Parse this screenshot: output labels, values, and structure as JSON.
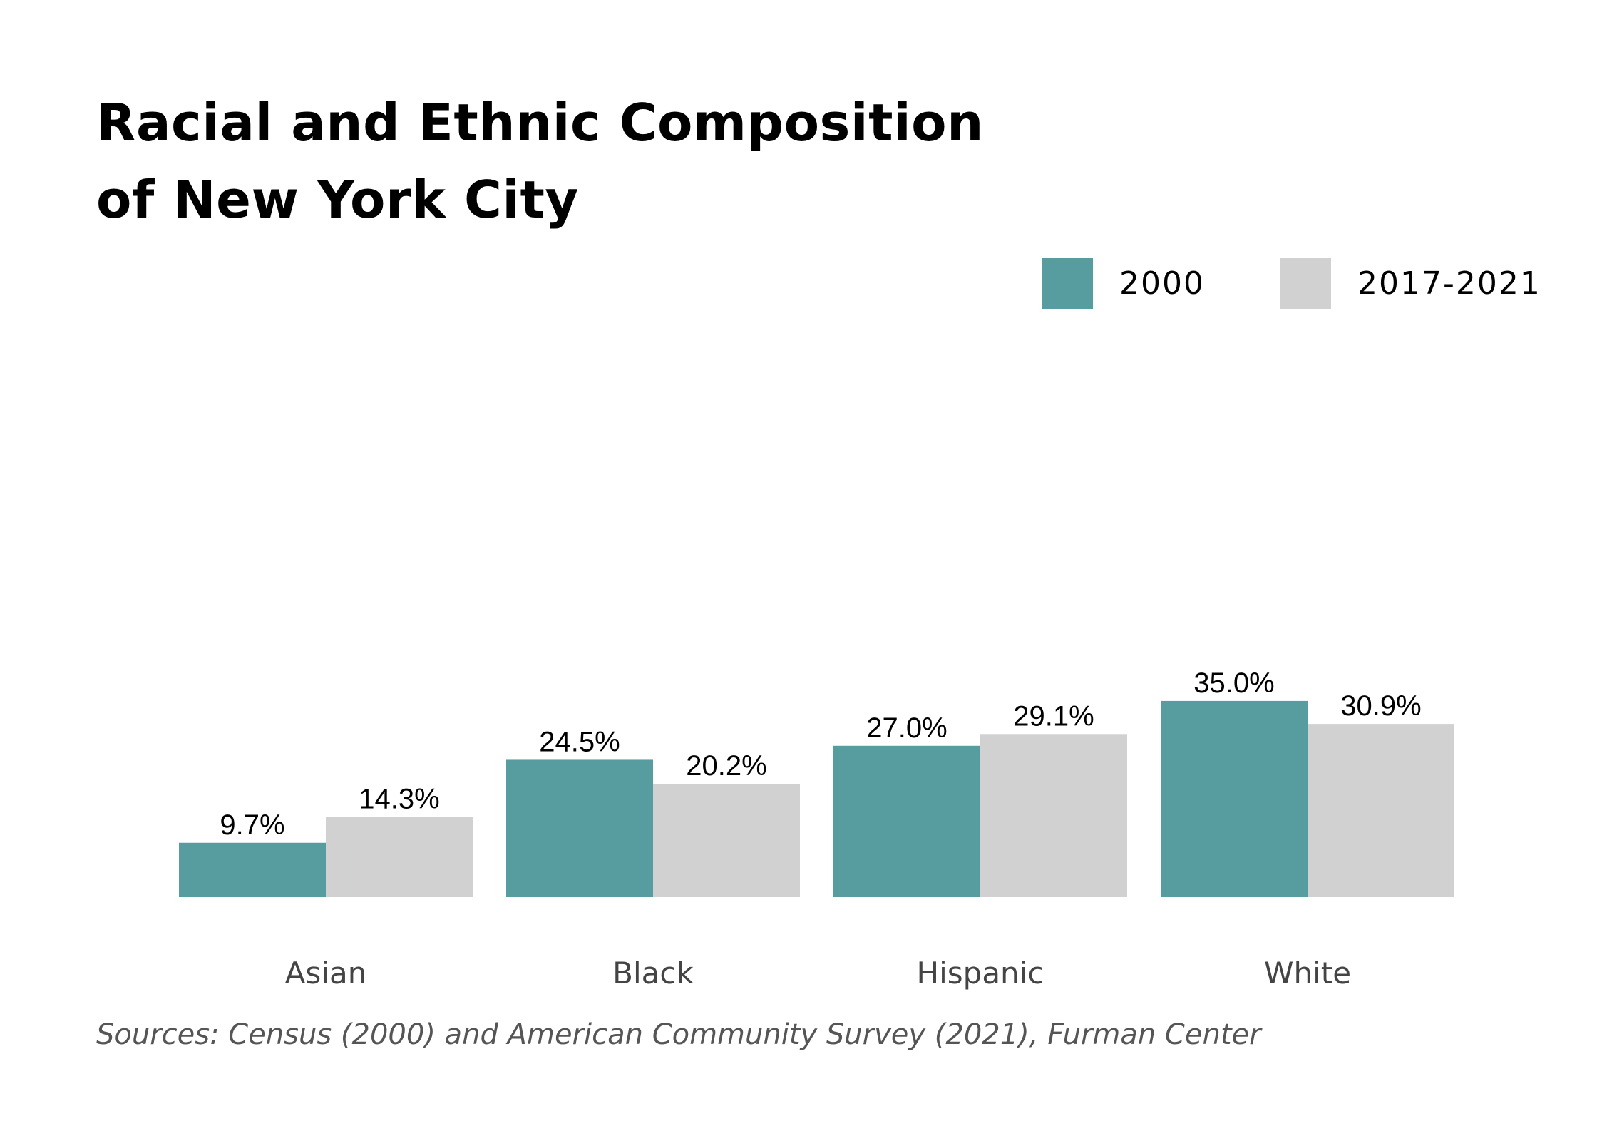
{
  "colors": {
    "series_2000": "#579c9e",
    "series_2017_2021": "#d1d1d1",
    "value_text": "#000000",
    "category_text": "#444444",
    "source_text": "#555555"
  },
  "chart_data": {
    "type": "bar",
    "title_lines": [
      "Racial and Ethnic Composition",
      "of New York City"
    ],
    "categories": [
      "Asian",
      "Black",
      "Hispanic",
      "White"
    ],
    "series": [
      {
        "name": "2000",
        "values": [
          9.7,
          24.5,
          27.0,
          35.0
        ],
        "labels": [
          "9.7%",
          "24.5%",
          "27.0%",
          "35.0%"
        ]
      },
      {
        "name": "2017-2021",
        "values": [
          14.3,
          20.2,
          29.1,
          30.9
        ],
        "labels": [
          "14.3%",
          "20.2%",
          "29.1%",
          "30.9%"
        ]
      }
    ],
    "ylim": [
      0,
      100
    ],
    "grid": false,
    "legend": "top-right",
    "source": "Sources: Census (2000) and American Community Survey (2021), Furman Center"
  }
}
